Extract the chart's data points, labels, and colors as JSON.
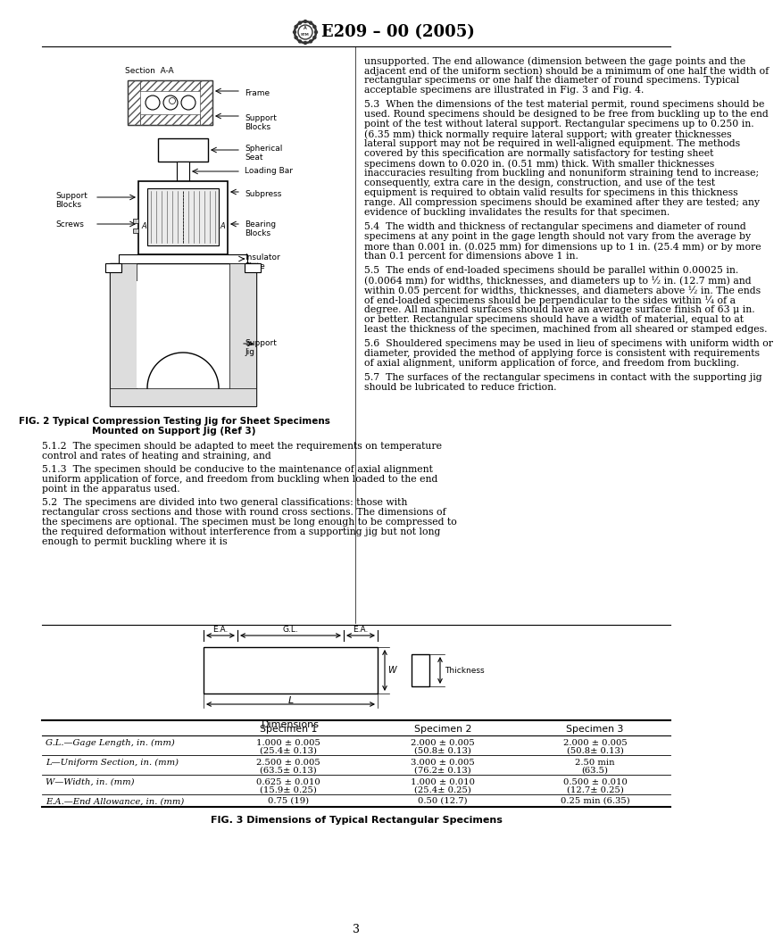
{
  "title": "E209 – 00 (2005)",
  "page_number": "3",
  "bg_color": "#ffffff",
  "fig2_caption_line1": "FIG. 2 Typical Compression Testing Jig for Sheet Specimens",
  "fig2_caption_line2": "Mounted on Support Jig (Ref 3)",
  "fig3_caption": "FIG. 3 Dimensions of Typical Rectangular Specimens",
  "right_para0": "unsupported. The end allowance (dimension between the gage points and the adjacent end of the uniform section) should be a minimum of one half the width of rectangular specimens or one half the diameter of round specimens. Typical acceptable specimens are illustrated in Fig. 3 and Fig. 4.",
  "right_para1": "5.3  When the dimensions of the test material permit, round specimens should be used. Round specimens should be designed to be free from buckling up to the end point of the test without lateral support. Rectangular specimens up to 0.250 in. (6.35 mm) thick normally require lateral support; with greater thicknesses lateral support may not be required in well-aligned equipment. The methods covered by this specification are normally satisfactory for testing sheet specimens down to 0.020 in. (0.51 mm) thick. With smaller thicknesses inaccuracies resulting from buckling and nonuniform straining tend to increase; consequently, extra care in the design, construction, and use of the test equipment is required to obtain valid results for specimens in this thickness range. All compression specimens should be examined after they are tested; any evidence of buckling invalidates the results for that specimen.",
  "right_para2": "5.4  The width and thickness of rectangular specimens and diameter of round specimens at any point in the gage length should not vary from the average by more than 0.001 in. (0.025 mm) for dimensions up to 1 in. (25.4 mm) or by more than 0.1 percent for dimensions above 1 in.",
  "right_para3": "5.5  The ends of end-loaded specimens should be parallel within 0.00025 in. (0.0064 mm) for widths, thicknesses, and diameters up to ½ in. (12.7 mm) and within 0.05 percent for widths, thicknesses, and diameters above ½ in. The ends of end-loaded specimens should be perpendicular to the sides within ¼ of a degree. All machined surfaces should have an average surface finish of 63 μ in. or better. Rectangular specimens should have a width of material, equal to at least the thickness of the specimen, machined from all sheared or stamped edges.",
  "right_para4": "5.6  Shouldered specimens may be used in lieu of specimens with uniform width or diameter, provided the method of applying force is consistent with requirements of axial alignment, uniform application of force, and freedom from buckling.",
  "right_para5": "5.7  The surfaces of the rectangular specimens in contact with the supporting jig should be lubricated to reduce friction.",
  "left_para0": "5.1.2  The specimen should be adapted to meet the requirements on temperature control and rates of heating and straining, and",
  "left_para1": "5.1.3  The specimen should be conducive to the maintenance of axial alignment uniform application of force, and freedom from buckling when loaded to the end point in the apparatus used.",
  "left_para2": "5.2  The specimens are divided into two general classifications: those with rectangular cross sections and those with round cross sections. The dimensions of the specimens are optional. The specimen must be long enough to be compressed to the required deformation without interference from a supporting jig but not long enough to permit buckling where it is",
  "table_headers": [
    "",
    "Specimen 1",
    "Specimen 2",
    "Specimen 3"
  ],
  "table_col_labels": [
    "G.L.—Gage Length, in. (mm)",
    "L—Uniform Section, in. (mm)",
    "W—Width, in. (mm)",
    "E.A.—End Allowance, in. (mm)"
  ],
  "table_s1": [
    "1.000 ± 0.005",
    "(25.4± 0.13)",
    "2.500 ± 0.005",
    "(63.5± 0.13)",
    "0.625 ± 0.010",
    "(15.9± 0.25)",
    "0.75 (19)"
  ],
  "table_s2": [
    "2.000 ± 0.005",
    "(50.8± 0.13)",
    "3.000 ± 0.005",
    "(76.2± 0.13)",
    "1.000 ± 0.010",
    "(25.4± 0.25)",
    "0.50 (12.7)"
  ],
  "table_s3": [
    "2.000 ± 0.005",
    "(50.8± 0.13)",
    "2.50 min",
    "(63.5)",
    "0.500 ± 0.010",
    "(12.7± 0.25)",
    "0.25 min (6.35)"
  ]
}
